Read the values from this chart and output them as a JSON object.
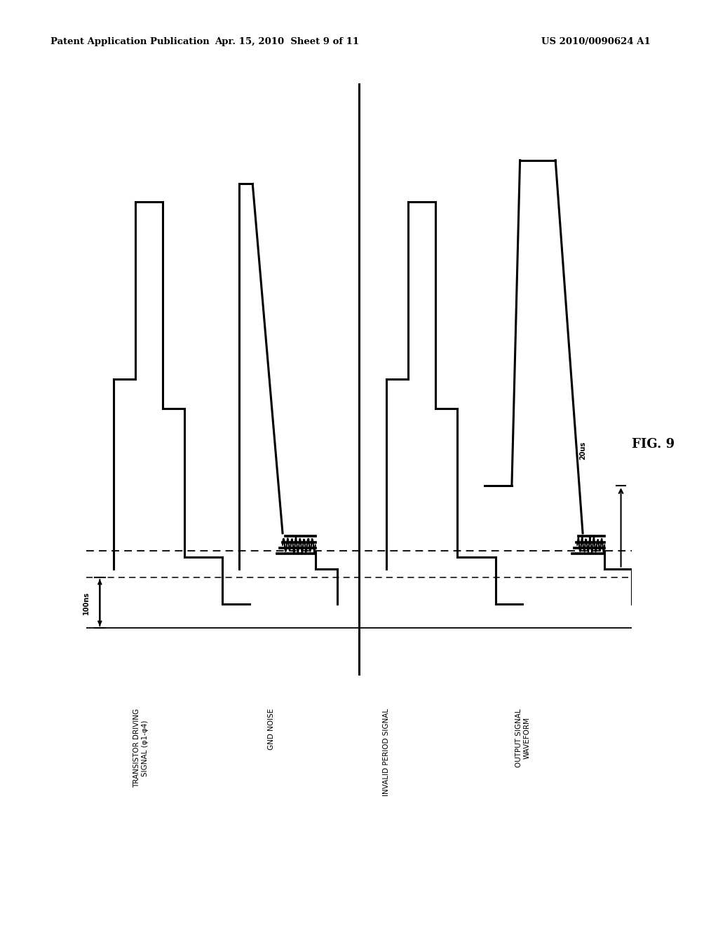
{
  "bg_color": "#ffffff",
  "header_text": "Patent Application Publication",
  "header_date": "Apr. 15, 2010  Sheet 9 of 11",
  "header_patent": "US 2010/0090624 A1",
  "fig_label": "FIG. 9",
  "time_label_left": "100ns",
  "time_label_right": "20us",
  "labels": [
    "TRANSISTOR DRIVING\nSIGNAL (φ1-φ4)",
    "GND NOISE",
    "INVALID PERIOD SIGNAL",
    "OUTPUT SIGNAL\nWAVEFORM"
  ],
  "waveform_color": "#000000"
}
